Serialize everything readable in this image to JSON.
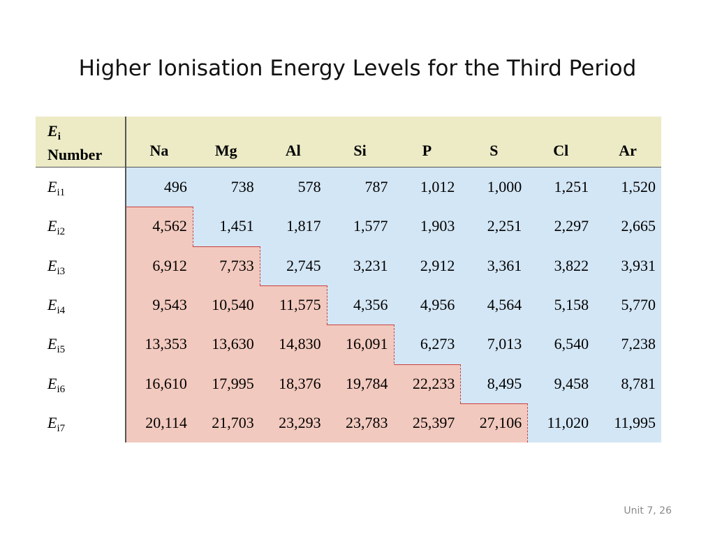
{
  "slide": {
    "title": "Higher Ionisation Energy Levels for the Third Period",
    "footer": "Unit 7, 26"
  },
  "table": {
    "corner_symbol": "E",
    "corner_subscript": "i",
    "corner_label": "Number",
    "columns": [
      "Na",
      "Mg",
      "Al",
      "Si",
      "P",
      "S",
      "Cl",
      "Ar"
    ],
    "row_symbol": "E",
    "rows": [
      {
        "sub": "i1",
        "values": [
          "496",
          "738",
          "578",
          "787",
          "1,012",
          "1,000",
          "1,251",
          "1,520"
        ]
      },
      {
        "sub": "i2",
        "values": [
          "4,562",
          "1,451",
          "1,817",
          "1,577",
          "1,903",
          "2,251",
          "2,297",
          "2,665"
        ]
      },
      {
        "sub": "i3",
        "values": [
          "6,912",
          "7,733",
          "2,745",
          "3,231",
          "2,912",
          "3,361",
          "3,822",
          "3,931"
        ]
      },
      {
        "sub": "i4",
        "values": [
          "9,543",
          "10,540",
          "11,575",
          "4,356",
          "4,956",
          "4,564",
          "5,158",
          "5,770"
        ]
      },
      {
        "sub": "i5",
        "values": [
          "13,353",
          "13,630",
          "14,830",
          "16,091",
          "6,273",
          "7,013",
          "6,540",
          "7,238"
        ]
      },
      {
        "sub": "i6",
        "values": [
          "16,610",
          "17,995",
          "18,376",
          "19,784",
          "22,233",
          "8,495",
          "9,458",
          "8,781"
        ]
      },
      {
        "sub": "i7",
        "values": [
          "20,114",
          "21,703",
          "23,293",
          "23,783",
          "25,397",
          "27,106",
          "11,020",
          "11,995"
        ]
      }
    ],
    "colors": {
      "header_bg": "#ecebc6",
      "valence_bg": "#d3e6f5",
      "core_bg": "#f2c9be",
      "step_line": "#c94040"
    }
  }
}
